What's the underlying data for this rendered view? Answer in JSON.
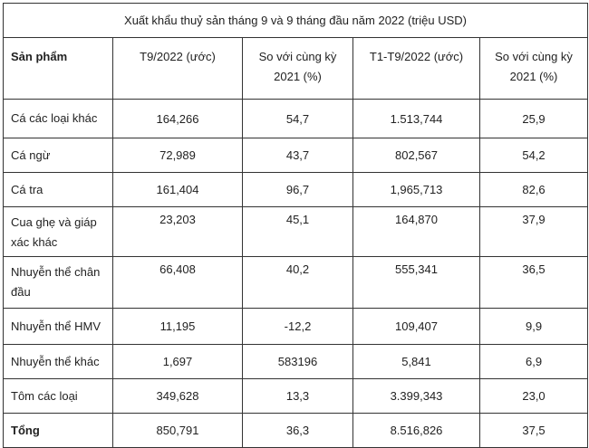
{
  "title": "Xuất khẩu thuỷ sản tháng 9 và 9 tháng đầu năm 2022 (triệu USD)",
  "headers": [
    "Sản phẩm",
    "T9/2022 (ước)",
    "So với cùng kỳ 2021 (%)",
    "T1-T9/2022 (ước)",
    "So với cùng kỳ 2021 (%)"
  ],
  "rows": [
    [
      "Cá các loại khác",
      "164,266",
      "54,7",
      "1.513,744",
      "25,9"
    ],
    [
      "Cá ngừ",
      "72,989",
      "43,7",
      "802,567",
      "54,2"
    ],
    [
      "Cá tra",
      "161,404",
      "96,7",
      "1,965,713",
      "82,6"
    ],
    [
      "Cua ghẹ và giáp xác khác",
      "23,203",
      "45,1",
      "164,870",
      "37,9"
    ],
    [
      "Nhuyễn thể chân đầu",
      "66,408",
      "40,2",
      "555,341",
      "36,5"
    ],
    [
      "Nhuyễn thể HMV",
      "11,195",
      "-12,2",
      "109,407",
      "9,9"
    ],
    [
      "Nhuyễn thể khác",
      "1,697",
      "583196",
      "5,841",
      "6,9"
    ],
    [
      "Tôm các loại",
      "349,628",
      "13,3",
      "3.399,343",
      "23,0"
    ],
    [
      "Tổng",
      "850,791",
      "36,3",
      "8.516,826",
      "37,5"
    ]
  ]
}
